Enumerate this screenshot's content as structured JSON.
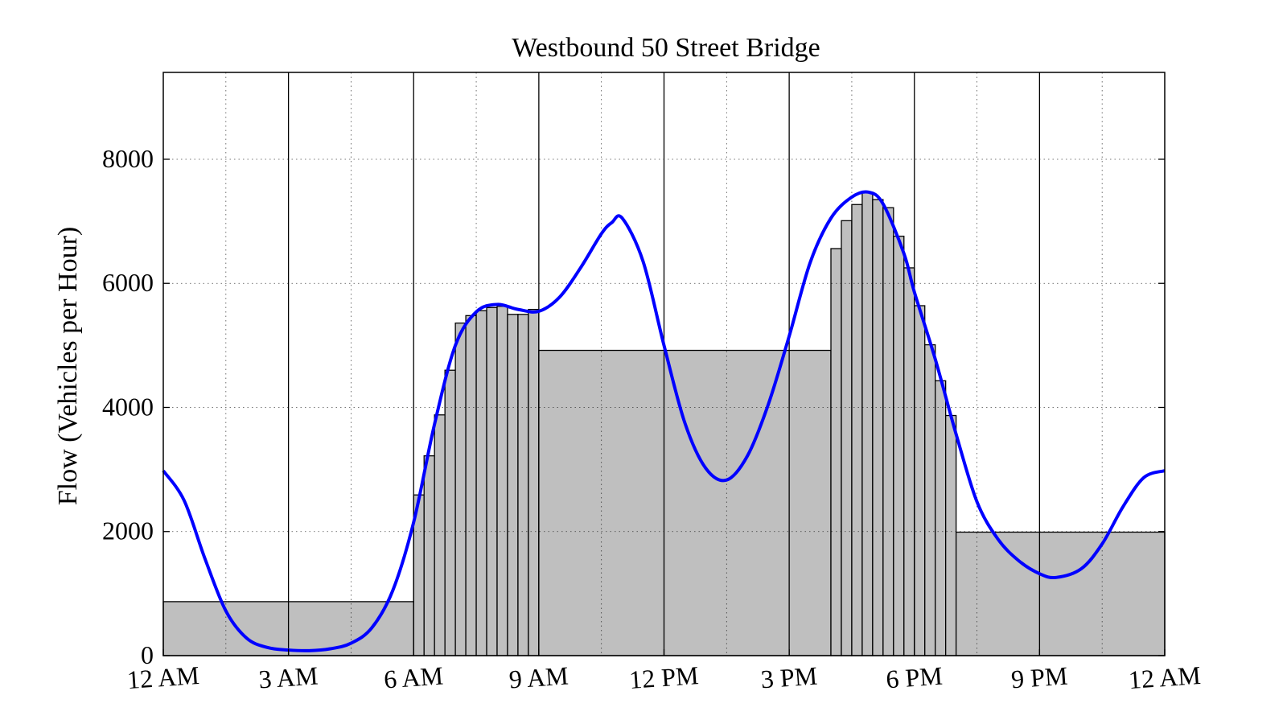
{
  "chart_data": {
    "type": "bar",
    "title": "Westbound 50 Street Bridge",
    "xlabel": "",
    "ylabel": "Flow (Vehicles per Hour)",
    "xlim_hours": [
      0,
      24
    ],
    "ylim": [
      0,
      9400
    ],
    "x_ticks": [
      {
        "hour": 0,
        "label": "12 AM"
      },
      {
        "hour": 3,
        "label": "3 AM"
      },
      {
        "hour": 6,
        "label": "6 AM"
      },
      {
        "hour": 9,
        "label": "9 AM"
      },
      {
        "hour": 12,
        "label": "12 PM"
      },
      {
        "hour": 15,
        "label": "3 PM"
      },
      {
        "hour": 18,
        "label": "6 PM"
      },
      {
        "hour": 21,
        "label": "9 PM"
      },
      {
        "hour": 24,
        "label": "12 AM"
      }
    ],
    "y_ticks": [
      0,
      2000,
      4000,
      6000,
      8000
    ],
    "grid": true,
    "colors": {
      "bar_fill": "#bfbfbf",
      "bar_edge": "#000000",
      "curve": "#0000ff"
    },
    "bars": [
      {
        "start": 0,
        "end": 6,
        "value": 870
      },
      {
        "start": 6.0,
        "end": 6.25,
        "value": 2590
      },
      {
        "start": 6.25,
        "end": 6.5,
        "value": 3220
      },
      {
        "start": 6.5,
        "end": 6.75,
        "value": 3880
      },
      {
        "start": 6.75,
        "end": 7.0,
        "value": 4600
      },
      {
        "start": 7.0,
        "end": 7.25,
        "value": 5360
      },
      {
        "start": 7.25,
        "end": 7.5,
        "value": 5480
      },
      {
        "start": 7.5,
        "end": 7.75,
        "value": 5560
      },
      {
        "start": 7.75,
        "end": 8.0,
        "value": 5610
      },
      {
        "start": 8.0,
        "end": 8.25,
        "value": 5630
      },
      {
        "start": 8.25,
        "end": 8.5,
        "value": 5500
      },
      {
        "start": 8.5,
        "end": 8.75,
        "value": 5500
      },
      {
        "start": 8.75,
        "end": 9.0,
        "value": 5580
      },
      {
        "start": 9,
        "end": 16,
        "value": 4920
      },
      {
        "start": 16.0,
        "end": 16.25,
        "value": 6560
      },
      {
        "start": 16.25,
        "end": 16.5,
        "value": 7010
      },
      {
        "start": 16.5,
        "end": 16.75,
        "value": 7270
      },
      {
        "start": 16.75,
        "end": 17.0,
        "value": 7470
      },
      {
        "start": 17.0,
        "end": 17.25,
        "value": 7350
      },
      {
        "start": 17.25,
        "end": 17.5,
        "value": 7220
      },
      {
        "start": 17.5,
        "end": 17.75,
        "value": 6760
      },
      {
        "start": 17.75,
        "end": 18.0,
        "value": 6250
      },
      {
        "start": 18.0,
        "end": 18.25,
        "value": 5640
      },
      {
        "start": 18.25,
        "end": 18.5,
        "value": 5010
      },
      {
        "start": 18.5,
        "end": 18.75,
        "value": 4430
      },
      {
        "start": 18.75,
        "end": 19.0,
        "value": 3870
      },
      {
        "start": 19,
        "end": 24,
        "value": 1990
      }
    ],
    "series": [
      {
        "type": "line",
        "x_hours": [
          0,
          0.5,
          1,
          1.5,
          2,
          2.5,
          3,
          3.5,
          4,
          4.5,
          5,
          5.5,
          6,
          6.5,
          7,
          7.5,
          8,
          8.5,
          9,
          9.5,
          10,
          10.5,
          10.75,
          11,
          11.5,
          12,
          12.5,
          13,
          13.5,
          14,
          14.5,
          15,
          15.5,
          16,
          16.5,
          16.9,
          17.25,
          17.75,
          18,
          18.5,
          19,
          19.5,
          20,
          20.5,
          21,
          21.4,
          22,
          22.5,
          23,
          23.5,
          24
        ],
        "y": [
          2980,
          2500,
          1560,
          720,
          280,
          130,
          90,
          80,
          110,
          200,
          450,
          1050,
          2150,
          3730,
          5000,
          5540,
          5660,
          5580,
          5550,
          5780,
          6250,
          6800,
          6980,
          7050,
          6350,
          5000,
          3750,
          3020,
          2830,
          3220,
          4050,
          5150,
          6330,
          7050,
          7390,
          7470,
          7280,
          6480,
          5860,
          4780,
          3570,
          2480,
          1880,
          1530,
          1320,
          1260,
          1400,
          1800,
          2400,
          2870,
          2980
        ]
      }
    ]
  }
}
